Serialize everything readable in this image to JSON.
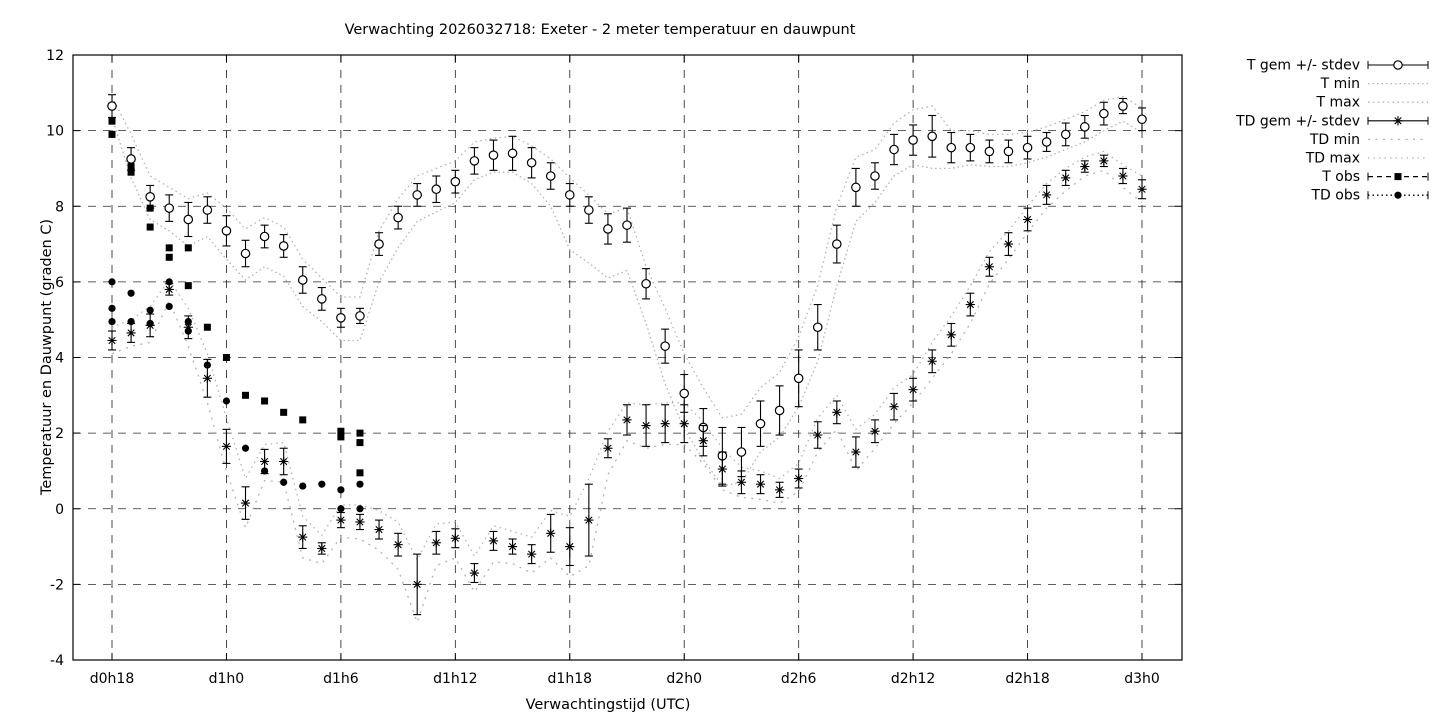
{
  "chart_data": {
    "type": "line",
    "title": "Verwachting 2026032718: Exeter - 2 meter temperatuur en dauwpunt",
    "xlabel": "Verwachtingstijd (UTC)",
    "ylabel": "Temperatuur en Dauwpunt (graden C)",
    "grid": true,
    "x_axis": {
      "tick_labels": [
        "d0h18",
        "d1h0",
        "d1h6",
        "d1h12",
        "d1h18",
        "d2h0",
        "d2h6",
        "d2h12",
        "d2h18",
        "d3h0"
      ],
      "tick_hours": [
        18,
        24,
        30,
        36,
        42,
        48,
        54,
        60,
        66,
        72
      ],
      "range_hours": [
        15.95,
        74.1
      ]
    },
    "y_axis": {
      "ticks": [
        -4,
        -2,
        0,
        2,
        4,
        6,
        8,
        10,
        12
      ],
      "range": [
        -4,
        12
      ]
    },
    "legend": {
      "position": "outside-top-right",
      "entries": [
        "T gem +/- stdev",
        "T min",
        "T max",
        "TD gem +/- stdev",
        "TD min",
        "TD max",
        "T obs",
        "TD obs"
      ]
    },
    "colors": {
      "foreground": "#000000",
      "minmax_line": "#b3b3b3",
      "grid": "#2b2b2b",
      "background": "#ffffff"
    },
    "hours": [
      18,
      19,
      20,
      21,
      22,
      23,
      24,
      25,
      26,
      27,
      28,
      29,
      30,
      31,
      32,
      33,
      34,
      35,
      36,
      37,
      38,
      39,
      40,
      41,
      42,
      43,
      44,
      45,
      46,
      47,
      48,
      49,
      50,
      51,
      52,
      53,
      54,
      55,
      56,
      57,
      58,
      59,
      60,
      61,
      62,
      63,
      64,
      65,
      66,
      67,
      68,
      69,
      70,
      71,
      72
    ],
    "series": {
      "t_gem": {
        "label": "T gem +/- stdev",
        "values": [
          10.65,
          9.25,
          8.25,
          7.95,
          7.65,
          7.9,
          7.35,
          6.75,
          7.2,
          6.95,
          6.05,
          5.55,
          5.05,
          5.1,
          7.0,
          7.7,
          8.3,
          8.45,
          8.65,
          9.2,
          9.35,
          9.4,
          9.15,
          8.8,
          8.3,
          7.9,
          7.4,
          7.5,
          5.95,
          4.3,
          3.05,
          2.15,
          1.4,
          1.5,
          2.25,
          2.6,
          3.45,
          4.8,
          7.0,
          8.5,
          8.8,
          9.5,
          9.75,
          9.85,
          9.55,
          9.55,
          9.45,
          9.45,
          9.55,
          9.7,
          9.9,
          10.1,
          10.45,
          10.65,
          10.3
        ],
        "stdev": [
          0.3,
          0.3,
          0.3,
          0.35,
          0.45,
          0.35,
          0.4,
          0.35,
          0.3,
          0.3,
          0.35,
          0.3,
          0.25,
          0.2,
          0.3,
          0.3,
          0.3,
          0.35,
          0.3,
          0.35,
          0.4,
          0.45,
          0.4,
          0.35,
          0.3,
          0.35,
          0.4,
          0.45,
          0.4,
          0.45,
          0.5,
          0.5,
          0.75,
          0.65,
          0.6,
          0.65,
          0.75,
          0.6,
          0.5,
          0.5,
          0.35,
          0.4,
          0.4,
          0.55,
          0.4,
          0.35,
          0.3,
          0.3,
          0.3,
          0.25,
          0.3,
          0.3,
          0.3,
          0.2,
          0.3
        ]
      },
      "t_min": {
        "label": "T min",
        "values": [
          10.35,
          8.75,
          7.65,
          7.35,
          6.95,
          7.2,
          6.6,
          6.05,
          6.4,
          6.15,
          5.35,
          4.95,
          4.45,
          4.45,
          6.0,
          6.9,
          7.6,
          7.85,
          8.1,
          8.7,
          8.9,
          8.9,
          8.6,
          8.0,
          6.85,
          6.5,
          6.1,
          6.3,
          4.9,
          3.3,
          2.1,
          1.3,
          0.6,
          0.7,
          1.5,
          1.9,
          2.7,
          3.9,
          5.9,
          7.6,
          8.1,
          8.8,
          9.1,
          9.0,
          9.0,
          9.1,
          9.05,
          9.05,
          9.15,
          9.3,
          9.5,
          9.7,
          10.0,
          10.25,
          9.95
        ]
      },
      "t_max": {
        "label": "T max",
        "values": [
          10.9,
          9.9,
          8.8,
          8.5,
          8.2,
          8.35,
          7.95,
          7.4,
          7.7,
          7.45,
          6.6,
          6.1,
          5.6,
          5.6,
          7.35,
          8.2,
          8.8,
          9.0,
          9.2,
          9.7,
          9.8,
          9.85,
          9.6,
          9.25,
          8.75,
          8.3,
          7.8,
          7.95,
          6.4,
          5.3,
          4.1,
          3.2,
          2.4,
          2.5,
          3.2,
          3.6,
          4.55,
          5.9,
          8.0,
          9.3,
          9.5,
          10.2,
          10.55,
          10.65,
          10.0,
          10.0,
          9.9,
          9.9,
          9.95,
          10.1,
          10.3,
          10.5,
          10.8,
          10.9,
          10.6
        ]
      },
      "td_gem": {
        "label": "TD gem +/- stdev",
        "values": [
          4.45,
          4.65,
          4.85,
          5.8,
          4.8,
          3.45,
          1.65,
          0.15,
          1.25,
          1.25,
          -0.75,
          -1.05,
          -0.3,
          -0.35,
          -0.55,
          -0.95,
          -2.0,
          -0.9,
          -0.78,
          -1.7,
          -0.85,
          -1.0,
          -1.2,
          -0.65,
          -1.0,
          -0.3,
          1.6,
          2.35,
          2.2,
          2.25,
          2.25,
          1.8,
          1.05,
          0.7,
          0.65,
          0.5,
          0.8,
          1.95,
          2.55,
          1.5,
          2.05,
          2.7,
          3.15,
          3.9,
          4.6,
          5.4,
          6.4,
          7.0,
          7.65,
          8.3,
          8.75,
          9.05,
          9.2,
          8.8,
          8.45
        ],
        "stdev": [
          0.25,
          0.25,
          0.3,
          0.15,
          0.3,
          0.5,
          0.45,
          0.43,
          0.32,
          0.35,
          0.3,
          0.15,
          0.2,
          0.2,
          0.25,
          0.3,
          0.8,
          0.3,
          0.25,
          0.25,
          0.25,
          0.2,
          0.25,
          0.5,
          0.5,
          0.95,
          0.25,
          0.4,
          0.55,
          0.5,
          0.5,
          0.4,
          0.45,
          0.3,
          0.25,
          0.2,
          0.25,
          0.35,
          0.3,
          0.4,
          0.3,
          0.35,
          0.3,
          0.3,
          0.3,
          0.3,
          0.25,
          0.3,
          0.3,
          0.25,
          0.2,
          0.15,
          0.15,
          0.2,
          0.25
        ]
      },
      "td_min": {
        "label": "TD min",
        "values": [
          4.1,
          4.3,
          4.4,
          5.5,
          4.3,
          2.8,
          1.0,
          -0.5,
          0.75,
          0.7,
          -1.3,
          -1.45,
          -0.75,
          -0.8,
          -1.1,
          -1.6,
          -3.0,
          -1.5,
          -1.3,
          -2.2,
          -1.4,
          -1.45,
          -1.7,
          -1.3,
          -1.8,
          -1.5,
          0.9,
          1.8,
          1.6,
          1.7,
          1.7,
          1.2,
          0.5,
          0.3,
          0.25,
          0.15,
          0.45,
          1.5,
          2.1,
          1.0,
          1.6,
          2.25,
          2.8,
          3.45,
          4.1,
          4.9,
          5.95,
          6.6,
          7.3,
          7.95,
          8.4,
          8.8,
          8.95,
          8.5,
          8.1
        ]
      },
      "td_max": {
        "label": "TD max",
        "values": [
          4.8,
          5.0,
          5.35,
          6.05,
          5.3,
          4.1,
          2.4,
          0.8,
          1.7,
          1.75,
          -0.2,
          -0.7,
          0.1,
          0.1,
          -0.05,
          -0.35,
          -1.35,
          -0.4,
          -0.35,
          -1.25,
          -0.45,
          -0.6,
          -0.75,
          -0.05,
          -0.2,
          0.8,
          2.05,
          2.8,
          2.75,
          2.8,
          2.8,
          2.3,
          1.6,
          1.1,
          1.0,
          0.8,
          1.2,
          2.4,
          3.0,
          2.1,
          2.5,
          3.2,
          3.55,
          4.4,
          5.1,
          5.9,
          6.8,
          7.35,
          8.0,
          8.6,
          9.0,
          9.3,
          9.45,
          9.1,
          8.8
        ]
      },
      "t_obs": {
        "label": "T obs",
        "points": [
          [
            18,
            10.25
          ],
          [
            18,
            9.9
          ],
          [
            19,
            9.05
          ],
          [
            19,
            8.9
          ],
          [
            20,
            7.95
          ],
          [
            20,
            7.45
          ],
          [
            21,
            6.9
          ],
          [
            21,
            6.65
          ],
          [
            22,
            6.9
          ],
          [
            22,
            5.9
          ],
          [
            23,
            4.8
          ],
          [
            24,
            4.0
          ],
          [
            25,
            3.0
          ],
          [
            26,
            2.85
          ],
          [
            27,
            2.55
          ],
          [
            28,
            2.35
          ],
          [
            30,
            2.05
          ],
          [
            30,
            1.9
          ],
          [
            31,
            2.0
          ],
          [
            31,
            1.75
          ],
          [
            31,
            0.95
          ]
        ]
      },
      "td_obs": {
        "label": "TD obs",
        "points": [
          [
            18,
            6.0
          ],
          [
            18,
            5.3
          ],
          [
            18,
            4.95
          ],
          [
            19,
            5.7
          ],
          [
            19,
            4.95
          ],
          [
            20,
            5.25
          ],
          [
            20,
            4.9
          ],
          [
            21,
            6.0
          ],
          [
            21,
            5.35
          ],
          [
            22,
            4.95
          ],
          [
            22,
            4.7
          ],
          [
            23,
            3.8
          ],
          [
            24,
            2.85
          ],
          [
            25,
            1.6
          ],
          [
            26,
            1.0
          ],
          [
            27,
            0.7
          ],
          [
            28,
            0.6
          ],
          [
            29,
            0.65
          ],
          [
            30,
            0.5
          ],
          [
            30,
            0.0
          ],
          [
            31,
            0.65
          ],
          [
            31,
            0.0
          ]
        ]
      }
    }
  }
}
